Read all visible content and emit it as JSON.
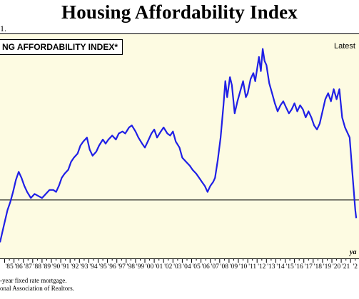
{
  "header": {
    "title": "Housing Affordability Index",
    "fragment": "1."
  },
  "footnotes": [
    "-year fixed rate mortgage.",
    "onal Association of Realtors."
  ],
  "colors": {
    "line": "#1f1fe6",
    "plot_bg": "#fdfbe2",
    "reference": "#000000"
  },
  "chart_data": {
    "type": "line",
    "title": "NG AFFORDABILITY INDEX*",
    "latest_label": "Latest",
    "x_unit_label": "ya",
    "x_tick_labels": [
      "'85",
      "'86",
      "'87",
      "'88",
      "'89",
      "'90",
      "'91",
      "'92",
      "'93",
      "'94",
      "'95",
      "'96",
      "'97",
      "'98",
      "'99",
      "'00",
      "'01",
      "'02",
      "'03",
      "'04",
      "'05",
      "'06",
      "'07",
      "'08",
      "'09",
      "'10",
      "'11",
      "'12",
      "'13",
      "'14",
      "'15",
      "'16",
      "'17",
      "'18",
      "'19",
      "'20",
      "'21",
      "'2"
    ],
    "xlim": [
      1984.5,
      2022.9
    ],
    "ylim": [
      0,
      100
    ],
    "reference_line": 29,
    "grid": false,
    "series": [
      {
        "values": [
          [
            1984.5,
            8
          ],
          [
            1984.9,
            16
          ],
          [
            1985.3,
            24
          ],
          [
            1985.6,
            28
          ],
          [
            1985.9,
            33
          ],
          [
            1986.2,
            39
          ],
          [
            1986.5,
            43
          ],
          [
            1986.8,
            40
          ],
          [
            1987.1,
            36
          ],
          [
            1987.4,
            33
          ],
          [
            1987.8,
            30
          ],
          [
            1988.2,
            32
          ],
          [
            1988.6,
            31
          ],
          [
            1989.0,
            30
          ],
          [
            1989.4,
            32
          ],
          [
            1989.8,
            34
          ],
          [
            1990.2,
            34
          ],
          [
            1990.5,
            33
          ],
          [
            1990.8,
            36
          ],
          [
            1991.1,
            40
          ],
          [
            1991.4,
            42
          ],
          [
            1991.8,
            44
          ],
          [
            1992.1,
            48
          ],
          [
            1992.4,
            50
          ],
          [
            1992.8,
            52
          ],
          [
            1993.1,
            56
          ],
          [
            1993.4,
            58
          ],
          [
            1993.8,
            60
          ],
          [
            1994.1,
            54
          ],
          [
            1994.4,
            51
          ],
          [
            1994.8,
            53
          ],
          [
            1995.1,
            56
          ],
          [
            1995.5,
            59
          ],
          [
            1995.8,
            57
          ],
          [
            1996.1,
            59
          ],
          [
            1996.5,
            61
          ],
          [
            1996.9,
            59
          ],
          [
            1997.2,
            62
          ],
          [
            1997.6,
            63
          ],
          [
            1997.9,
            62
          ],
          [
            1998.3,
            65
          ],
          [
            1998.6,
            66
          ],
          [
            1999.0,
            63
          ],
          [
            1999.3,
            60
          ],
          [
            1999.7,
            57
          ],
          [
            2000.0,
            55
          ],
          [
            2000.3,
            58
          ],
          [
            2000.7,
            62
          ],
          [
            2001.0,
            64
          ],
          [
            2001.3,
            60
          ],
          [
            2001.7,
            63
          ],
          [
            2002.0,
            65
          ],
          [
            2002.4,
            62
          ],
          [
            2002.7,
            61
          ],
          [
            2003.0,
            63
          ],
          [
            2003.3,
            58
          ],
          [
            2003.7,
            55
          ],
          [
            2004.0,
            50
          ],
          [
            2004.4,
            48
          ],
          [
            2004.8,
            46
          ],
          [
            2005.1,
            44
          ],
          [
            2005.5,
            42
          ],
          [
            2005.8,
            40
          ],
          [
            2006.1,
            38
          ],
          [
            2006.4,
            36
          ],
          [
            2006.7,
            33
          ],
          [
            2007.0,
            36
          ],
          [
            2007.3,
            38
          ],
          [
            2007.5,
            40
          ],
          [
            2007.8,
            49
          ],
          [
            2008.1,
            60
          ],
          [
            2008.4,
            76
          ],
          [
            2008.6,
            88
          ],
          [
            2008.8,
            80
          ],
          [
            2009.1,
            90
          ],
          [
            2009.3,
            86
          ],
          [
            2009.6,
            72
          ],
          [
            2009.9,
            78
          ],
          [
            2010.2,
            83
          ],
          [
            2010.5,
            88
          ],
          [
            2010.8,
            80
          ],
          [
            2011.0,
            82
          ],
          [
            2011.3,
            89
          ],
          [
            2011.6,
            92
          ],
          [
            2011.8,
            88
          ],
          [
            2012.0,
            94
          ],
          [
            2012.2,
            100
          ],
          [
            2012.4,
            93
          ],
          [
            2012.6,
            104
          ],
          [
            2012.8,
            98
          ],
          [
            2013.0,
            96
          ],
          [
            2013.3,
            87
          ],
          [
            2013.6,
            82
          ],
          [
            2013.9,
            77
          ],
          [
            2014.2,
            73
          ],
          [
            2014.5,
            76
          ],
          [
            2014.8,
            78
          ],
          [
            2015.1,
            75
          ],
          [
            2015.4,
            72
          ],
          [
            2015.7,
            74
          ],
          [
            2016.0,
            77
          ],
          [
            2016.3,
            73
          ],
          [
            2016.6,
            76
          ],
          [
            2016.9,
            74
          ],
          [
            2017.2,
            70
          ],
          [
            2017.5,
            73
          ],
          [
            2017.8,
            70
          ],
          [
            2018.1,
            66
          ],
          [
            2018.4,
            64
          ],
          [
            2018.7,
            67
          ],
          [
            2019.0,
            73
          ],
          [
            2019.3,
            79
          ],
          [
            2019.6,
            82
          ],
          [
            2019.9,
            78
          ],
          [
            2020.2,
            84
          ],
          [
            2020.5,
            79
          ],
          [
            2020.8,
            84
          ],
          [
            2021.1,
            70
          ],
          [
            2021.4,
            65
          ],
          [
            2021.6,
            63
          ],
          [
            2021.9,
            60
          ],
          [
            2022.2,
            42
          ],
          [
            2022.5,
            24
          ],
          [
            2022.6,
            20
          ]
        ]
      }
    ]
  }
}
